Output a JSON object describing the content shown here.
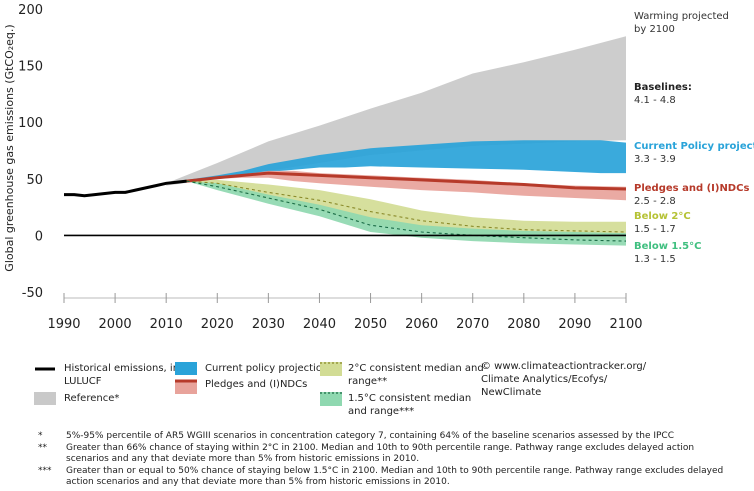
{
  "chart_data": {
    "type": "area",
    "ylabel": "Global greenhouse gas emissions (GtCO₂eq.)",
    "xlim": [
      1990,
      2100
    ],
    "ylim": [
      -50,
      200
    ],
    "x_ticks": [
      "1990",
      "2000",
      "2010",
      "2020",
      "2030",
      "2040",
      "2050",
      "2060",
      "2070",
      "2080",
      "2090",
      "2100"
    ],
    "y_ticks": [
      "200",
      "150",
      "100",
      "50",
      "0",
      "-50"
    ],
    "grid": false,
    "series": [
      {
        "name": "Historical emissions, incl. LULUCF",
        "type": "line",
        "color": "#000000",
        "x": [
          1990,
          1992,
          1994,
          1996,
          1998,
          2000,
          2002,
          2004,
          2006,
          2008,
          2010,
          2012,
          2014
        ],
        "y": [
          36,
          36,
          35,
          36,
          37,
          38,
          38,
          40,
          42,
          44,
          46,
          47,
          48
        ]
      },
      {
        "name": "Reference*",
        "type": "range",
        "color": "#c9c9c9",
        "x": [
          2010,
          2020,
          2030,
          2040,
          2050,
          2060,
          2070,
          2080,
          2090,
          2100
        ],
        "low": [
          44,
          50,
          57,
          64,
          71,
          75,
          79,
          81,
          83,
          84
        ],
        "high": [
          46,
          64,
          83,
          97,
          112,
          126,
          143,
          153,
          164,
          176
        ]
      },
      {
        "name": "Current policy projections",
        "type": "range",
        "color": "#29a3d9",
        "x": [
          2014,
          2020,
          2025,
          2030,
          2035,
          2040,
          2045,
          2050,
          2060,
          2070,
          2080,
          2090,
          2095,
          2100
        ],
        "low": [
          48,
          51,
          53,
          56,
          58,
          60,
          60,
          61,
          60,
          59,
          58,
          56,
          55,
          55
        ],
        "high": [
          49,
          53,
          57,
          63,
          67,
          71,
          74,
          77,
          80,
          83,
          84,
          84,
          84,
          82
        ]
      },
      {
        "name": "Pledges and (I)NDCs",
        "type": "range",
        "color": "#e8a39b",
        "median_color": "#b63a2a",
        "x": [
          2014,
          2020,
          2025,
          2030,
          2035,
          2040,
          2050,
          2060,
          2070,
          2080,
          2090,
          2100
        ],
        "low": [
          47,
          50,
          51,
          51,
          48,
          46,
          43,
          40,
          38,
          35,
          33,
          31
        ],
        "high": [
          49,
          52,
          54,
          57,
          57,
          55,
          53,
          51,
          49,
          46,
          44,
          43
        ],
        "median": [
          48,
          51,
          53,
          55,
          54,
          53,
          51,
          49,
          47,
          45,
          42,
          41
        ]
      },
      {
        "name": "2°C consistent median and range**",
        "type": "range",
        "color": "#d2dc95",
        "median_color": "#8a8a2a",
        "x": [
          2014,
          2020,
          2030,
          2040,
          2050,
          2060,
          2070,
          2080,
          2090,
          2100
        ],
        "low": [
          48,
          43,
          32,
          22,
          10,
          4,
          0,
          -2,
          -3,
          -4
        ],
        "high": [
          48,
          49,
          45,
          40,
          32,
          22,
          16,
          13,
          12,
          12
        ],
        "median": [
          48,
          46,
          38,
          31,
          21,
          13,
          8,
          5,
          4,
          3
        ]
      },
      {
        "name": "1.5°C consistent median and range***",
        "type": "range",
        "color": "#8fd8b0",
        "median_color": "#1a6b45",
        "x": [
          2014,
          2020,
          2030,
          2040,
          2050,
          2060,
          2070,
          2080,
          2090,
          2100
        ],
        "low": [
          48,
          40,
          28,
          17,
          3,
          -2,
          -5,
          -7,
          -8,
          -9
        ],
        "high": [
          48,
          46,
          36,
          27,
          16,
          9,
          6,
          4,
          3,
          2
        ],
        "median": [
          48,
          43,
          33,
          23,
          9,
          3,
          0,
          -2,
          -4,
          -5
        ]
      }
    ],
    "annotations": {
      "warming_header": "Warming projected by 2100",
      "baselines": {
        "title": "Baselines:",
        "value": "4.1 - 4.8"
      },
      "current_policy": {
        "title": "Current Policy projections",
        "value": "3.3 - 3.9",
        "color": "#29a3d9"
      },
      "pledges": {
        "title": "Pledges and (I)NDCs",
        "value": "2.5 - 2.8",
        "color": "#b63a2a"
      },
      "below2": {
        "title": "Below 2°C",
        "value": "1.5 - 1.7",
        "color": "#b5c234"
      },
      "below15": {
        "title": "Below 1.5°C",
        "value": "1.3 - 1.5",
        "color": "#3fbf7f"
      }
    }
  },
  "legend": {
    "historical": "Historical emissions, incl. LULUCF",
    "reference": "Reference*",
    "current_policy": "Current policy projections",
    "pledges": "Pledges and (I)NDCs",
    "two_deg": "2°C consistent median and range**",
    "one_five_deg": "1.5°C consistent median and range***"
  },
  "credit": "© www.climateactiontracker.org/ Climate Analytics/Ecofys/ NewClimate",
  "footnotes": [
    {
      "mark": "*",
      "text": "5%-95% percentile of AR5 WGIII scenarios in concentration category 7, containing 64% of the baseline scenarios assessed by the IPCC"
    },
    {
      "mark": "**",
      "text": "Greater than 66% chance of staying within 2°C in 2100. Median and 10th to 90th percentile range. Pathway range excludes delayed action scenarios and any that deviate more than 5% from historic emissions in 2010."
    },
    {
      "mark": "***",
      "text": "Greater than or equal to 50% chance of staying below 1.5°C in 2100. Median and 10th to 90th percentile range. Pathway range excludes delayed action scenarios and any that deviate more than 5% from historic emissions in 2010."
    }
  ]
}
